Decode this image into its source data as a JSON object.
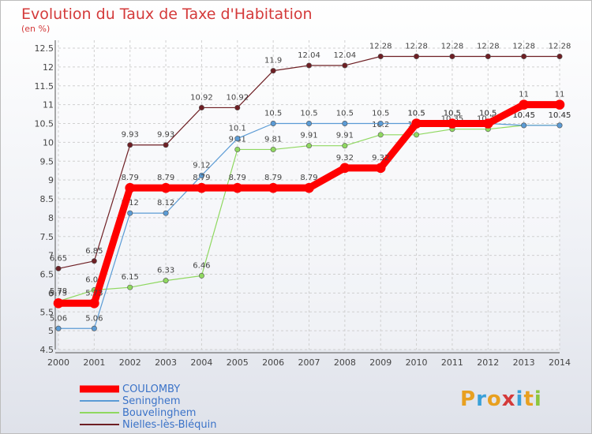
{
  "title": "Evolution du Taux de Taxe d'Habitation",
  "subtitle": "(en %)",
  "logo": {
    "text": "Proxiti",
    "colors": [
      "#e8a020",
      "#3aa0d8",
      "#e8a020",
      "#d43a3a",
      "#3aa0d8",
      "#e8a020",
      "#8cc63e"
    ]
  },
  "chart_data": {
    "type": "line",
    "x": [
      "2000",
      "2001",
      "2002",
      "2003",
      "2004",
      "2005",
      "2006",
      "2007",
      "2008",
      "2009",
      "2010",
      "2011",
      "2012",
      "2013",
      "2014"
    ],
    "yticks": [
      "4.5",
      "5",
      "5.5",
      "6",
      "6.5",
      "7",
      "7.5",
      "8",
      "8.5",
      "9",
      "9.5",
      "10",
      "10.5",
      "11",
      "11.5",
      "12",
      "12.5"
    ],
    "ylim": [
      4.5,
      12.5
    ],
    "grid": true,
    "series": [
      {
        "name": "COULOMBY",
        "color": "#ff0000",
        "width": 9,
        "values": [
          5.73,
          5.73,
          8.79,
          8.79,
          8.79,
          8.79,
          8.79,
          8.79,
          9.32,
          9.32,
          10.5,
          10.5,
          10.5,
          11,
          11
        ],
        "labels": [
          "5.73",
          "5.73",
          "8.79",
          "8.79",
          "8.79",
          "8.79",
          "8.79",
          "8.79",
          "9.32",
          "9.32",
          "10.5",
          "10.5",
          "10.5",
          "11",
          "11"
        ]
      },
      {
        "name": "Seninghem",
        "color": "#5b9bd5",
        "width": 1.2,
        "values": [
          5.06,
          5.06,
          8.12,
          8.12,
          9.12,
          10.1,
          10.5,
          10.5,
          10.5,
          10.5,
          10.5,
          10.5,
          10.5,
          10.45,
          10.45
        ],
        "labels": [
          "5.06",
          "5.06",
          "8.12",
          "8.12",
          "9.12",
          "10.1",
          "10.5",
          "10.5",
          "10.5",
          "10.5",
          "10.5",
          "10.5",
          "10.5",
          "10.45",
          "10.45"
        ]
      },
      {
        "name": "Bouvelinghem",
        "color": "#8fd860",
        "width": 1.2,
        "values": [
          5.78,
          6.08,
          6.15,
          6.33,
          6.46,
          9.81,
          9.81,
          9.91,
          9.91,
          10.2,
          10.2,
          10.35,
          10.35,
          10.45,
          10.45
        ],
        "labels": [
          "5.78",
          "6.08",
          "6.15",
          "6.33",
          "6.46",
          "9.81",
          "9.81",
          "9.91",
          "9.91",
          "10.2",
          "10.2",
          "10.35",
          "10.35",
          "10.45",
          "10.45"
        ]
      },
      {
        "name": "Nielles-lès-Bléquin",
        "color": "#6e1f24",
        "width": 1.2,
        "values": [
          6.65,
          6.85,
          9.93,
          9.93,
          10.92,
          10.92,
          11.9,
          12.04,
          12.04,
          12.28,
          12.28,
          12.28,
          12.28,
          12.28,
          12.28
        ],
        "labels": [
          "6.65",
          "6.85",
          "9.93",
          "9.93",
          "10.92",
          "10.92",
          "11.9",
          "12.04",
          "12.04",
          "12.28",
          "12.28",
          "12.28",
          "12.28",
          "12.28",
          "12.28"
        ]
      }
    ]
  },
  "legend": [
    "COULOMBY",
    "Seninghem",
    "Bouvelinghem",
    "Nielles-lès-Bléquin"
  ]
}
